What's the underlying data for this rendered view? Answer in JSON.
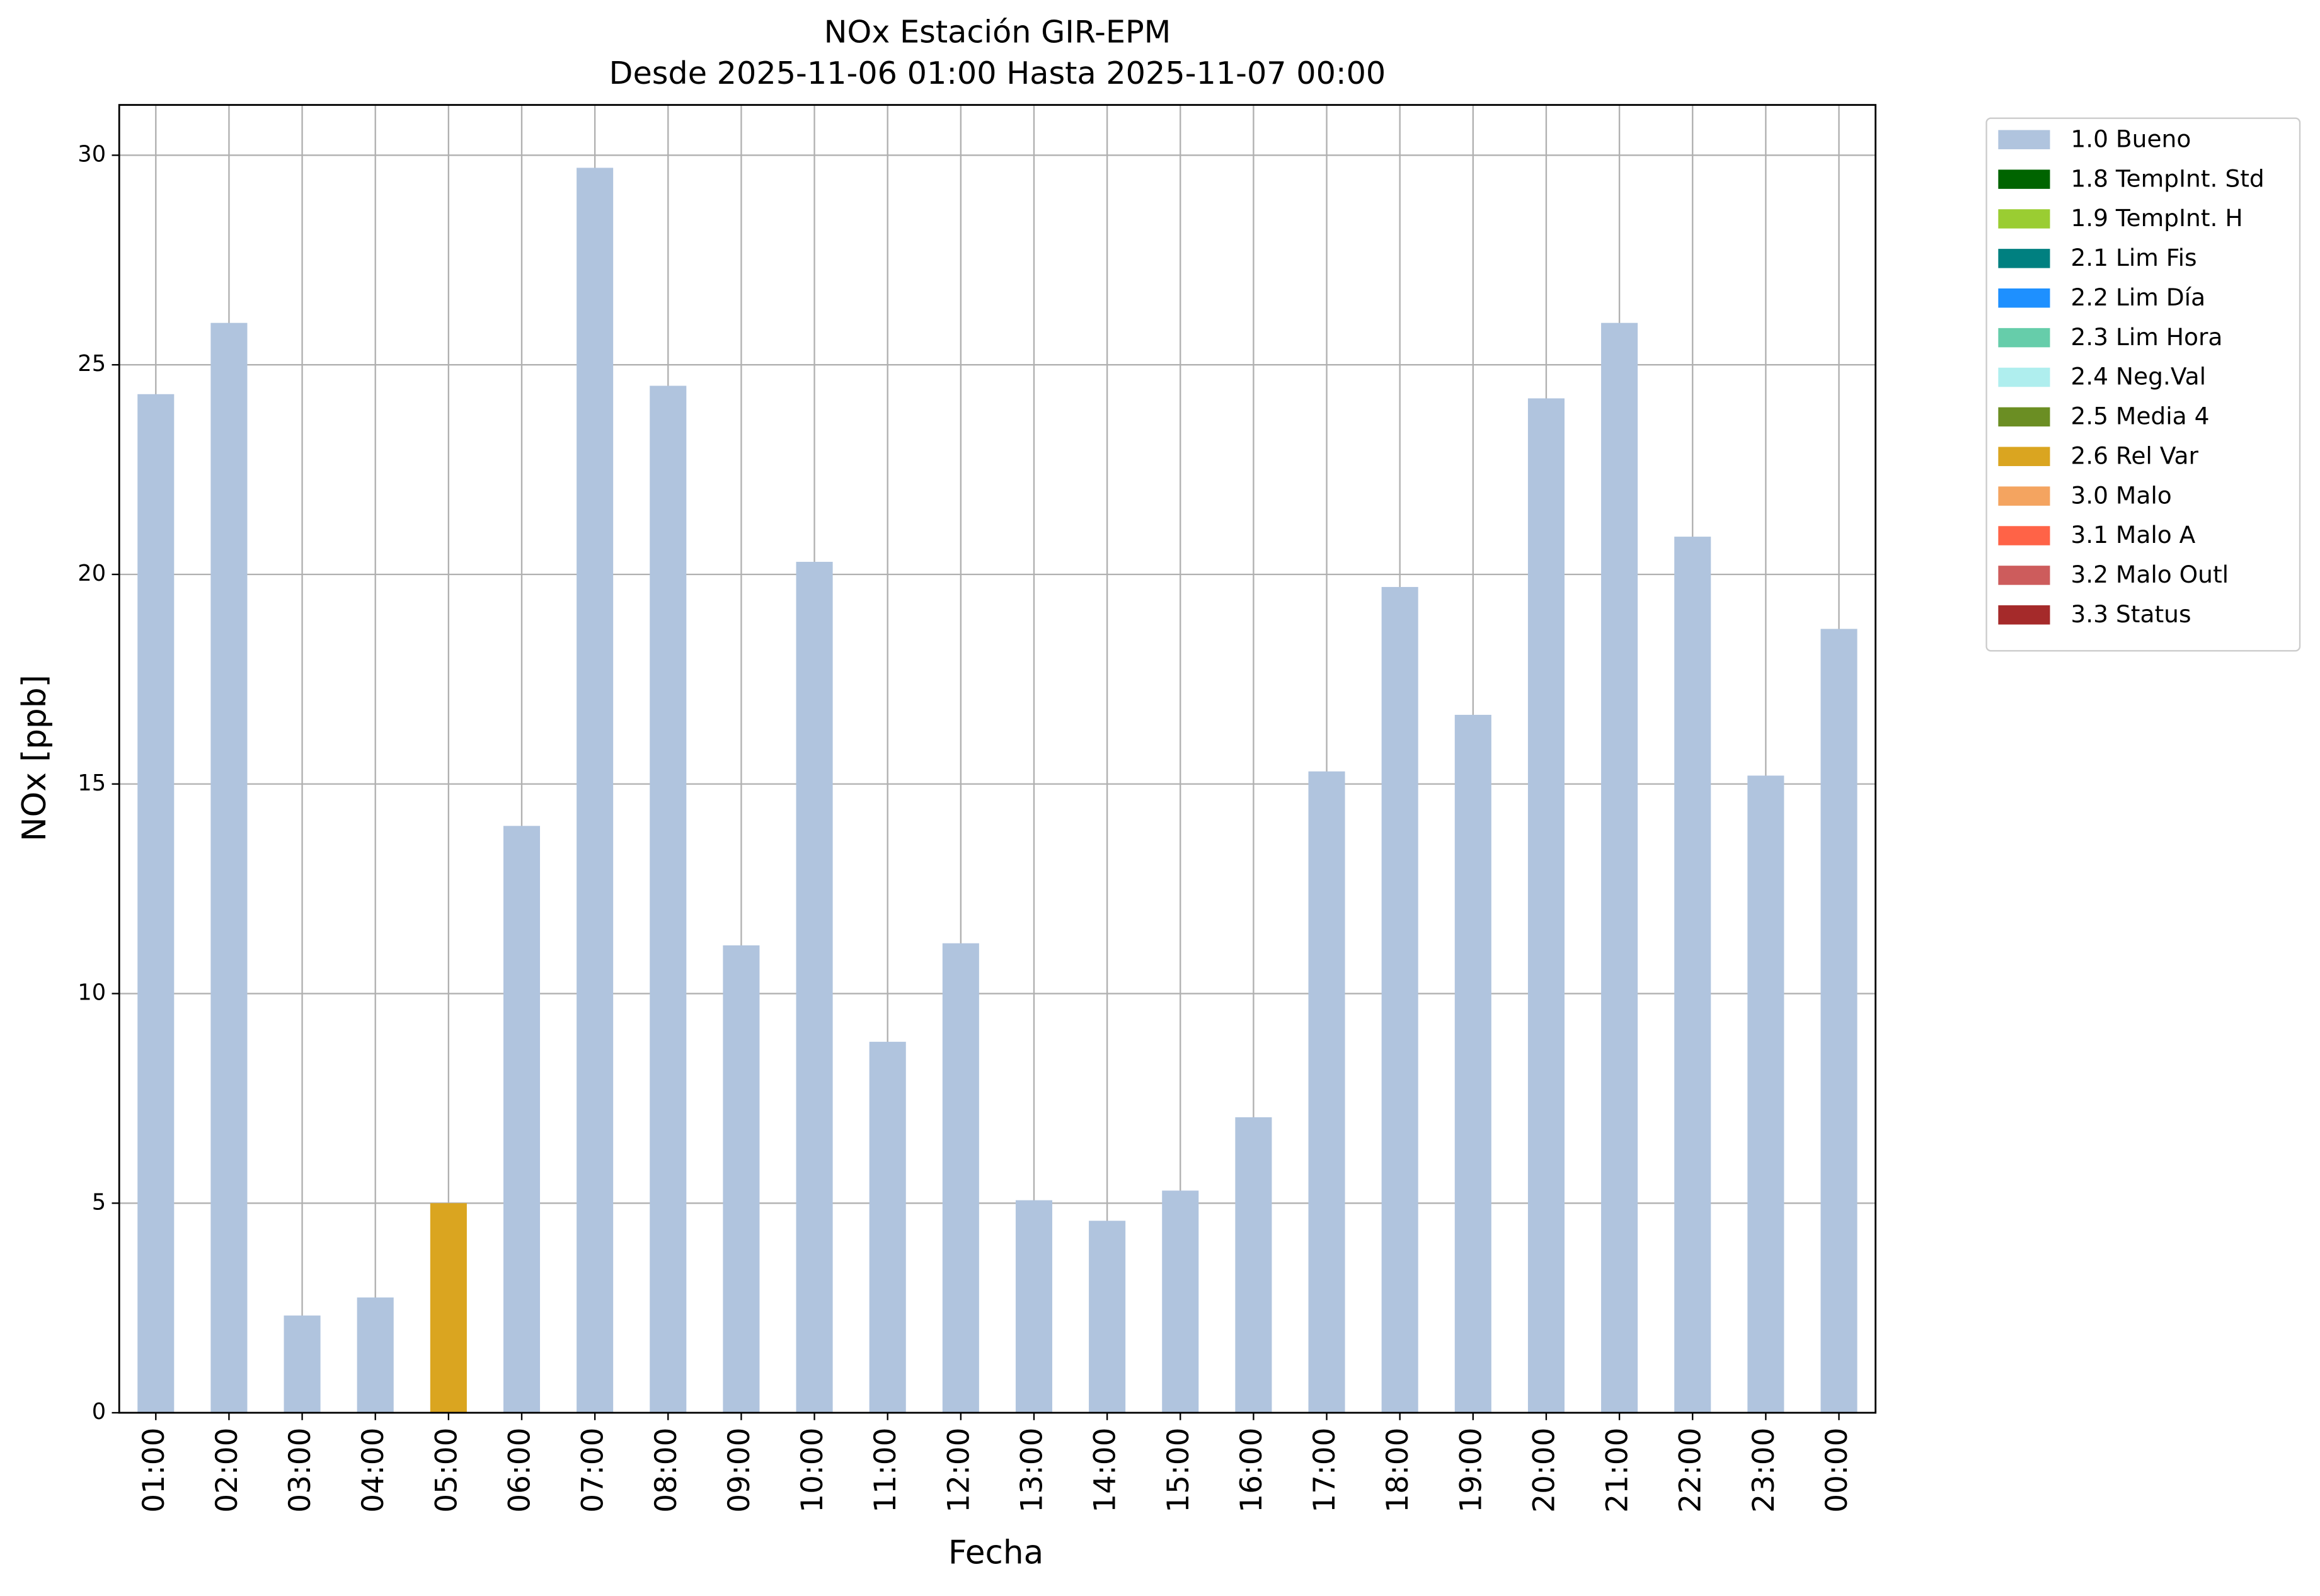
{
  "chart_data": {
    "type": "stacked_bar",
    "title": "NOx Estación GIR-EPM",
    "subtitle": "Desde 2025-11-06 01:00 Hasta 2025-11-07 00:00",
    "x_label": "Fecha",
    "y_label": "NOx [ppb]",
    "categories": [
      "01:00",
      "02:00",
      "03:00",
      "04:00",
      "05:00",
      "06:00",
      "07:00",
      "08:00",
      "09:00",
      "10:00",
      "11:00",
      "12:00",
      "13:00",
      "14:00",
      "15:00",
      "16:00",
      "17:00",
      "18:00",
      "19:00",
      "20:00",
      "21:00",
      "22:00",
      "23:00",
      "00:00"
    ],
    "series": [
      {
        "name": "1.0 Bueno",
        "color": "#b0c4de",
        "values": [
          24.3,
          26.0,
          2.32,
          2.75,
          null,
          14.0,
          29.7,
          24.5,
          11.15,
          20.3,
          8.85,
          11.2,
          5.07,
          4.58,
          5.3,
          7.05,
          15.3,
          19.7,
          16.65,
          24.2,
          26.0,
          20.9,
          15.2,
          18.7
        ]
      },
      {
        "name": "1.8 TempInt. Std",
        "color": "#006400",
        "values": [
          null,
          null,
          null,
          null,
          null,
          null,
          null,
          null,
          null,
          null,
          null,
          null,
          null,
          null,
          null,
          null,
          null,
          null,
          null,
          null,
          null,
          null,
          null,
          null
        ]
      },
      {
        "name": "1.9 TempInt. H",
        "color": "#9acd32",
        "values": [
          null,
          null,
          null,
          null,
          null,
          null,
          null,
          null,
          null,
          null,
          null,
          null,
          null,
          null,
          null,
          null,
          null,
          null,
          null,
          null,
          null,
          null,
          null,
          null
        ]
      },
      {
        "name": "2.1 Lim Fis",
        "color": "#008080",
        "values": [
          null,
          null,
          null,
          null,
          null,
          null,
          null,
          null,
          null,
          null,
          null,
          null,
          null,
          null,
          null,
          null,
          null,
          null,
          null,
          null,
          null,
          null,
          null,
          null
        ]
      },
      {
        "name": "2.2 Lim Día",
        "color": "#1e90ff",
        "values": [
          null,
          null,
          null,
          null,
          null,
          null,
          null,
          null,
          null,
          null,
          null,
          null,
          null,
          null,
          null,
          null,
          null,
          null,
          null,
          null,
          null,
          null,
          null,
          null
        ]
      },
      {
        "name": "2.3 Lim Hora",
        "color": "#66cdaa",
        "values": [
          null,
          null,
          null,
          null,
          null,
          null,
          null,
          null,
          null,
          null,
          null,
          null,
          null,
          null,
          null,
          null,
          null,
          null,
          null,
          null,
          null,
          null,
          null,
          null
        ]
      },
      {
        "name": "2.4 Neg.Val",
        "color": "#afeeee",
        "values": [
          null,
          null,
          null,
          null,
          null,
          null,
          null,
          null,
          null,
          null,
          null,
          null,
          null,
          null,
          null,
          null,
          null,
          null,
          null,
          null,
          null,
          null,
          null,
          null
        ]
      },
      {
        "name": "2.5 Media 4",
        "color": "#6b8e23",
        "values": [
          null,
          null,
          null,
          null,
          null,
          null,
          null,
          null,
          null,
          null,
          null,
          null,
          null,
          null,
          null,
          null,
          null,
          null,
          null,
          null,
          null,
          null,
          null,
          null
        ]
      },
      {
        "name": "2.6 Rel Var",
        "color": "#daa520",
        "values": [
          null,
          null,
          null,
          null,
          5.0,
          null,
          null,
          null,
          null,
          null,
          null,
          null,
          null,
          null,
          null,
          null,
          null,
          null,
          null,
          null,
          null,
          null,
          null,
          null
        ]
      },
      {
        "name": "3.0 Malo",
        "color": "#f4a460",
        "values": [
          null,
          null,
          null,
          null,
          null,
          null,
          null,
          null,
          null,
          null,
          null,
          null,
          null,
          null,
          null,
          null,
          null,
          null,
          null,
          null,
          null,
          null,
          null,
          null
        ]
      },
      {
        "name": "3.1 Malo A",
        "color": "#ff6347",
        "values": [
          null,
          null,
          null,
          null,
          null,
          null,
          null,
          null,
          null,
          null,
          null,
          null,
          null,
          null,
          null,
          null,
          null,
          null,
          null,
          null,
          null,
          null,
          null,
          null
        ]
      },
      {
        "name": "3.2 Malo Outl",
        "color": "#cd5c5c",
        "values": [
          null,
          null,
          null,
          null,
          null,
          null,
          null,
          null,
          null,
          null,
          null,
          null,
          null,
          null,
          null,
          null,
          null,
          null,
          null,
          null,
          null,
          null,
          null,
          null
        ]
      },
      {
        "name": "3.3 Status",
        "color": "#a52a2a",
        "values": [
          null,
          null,
          null,
          null,
          null,
          null,
          null,
          null,
          null,
          null,
          null,
          null,
          null,
          null,
          null,
          null,
          null,
          null,
          null,
          null,
          null,
          null,
          null,
          null
        ]
      }
    ],
    "ylim": [
      0,
      31.2
    ],
    "yticks": [
      0,
      5,
      10,
      15,
      20,
      25,
      30
    ],
    "grid": true,
    "legend": "outside-right"
  }
}
